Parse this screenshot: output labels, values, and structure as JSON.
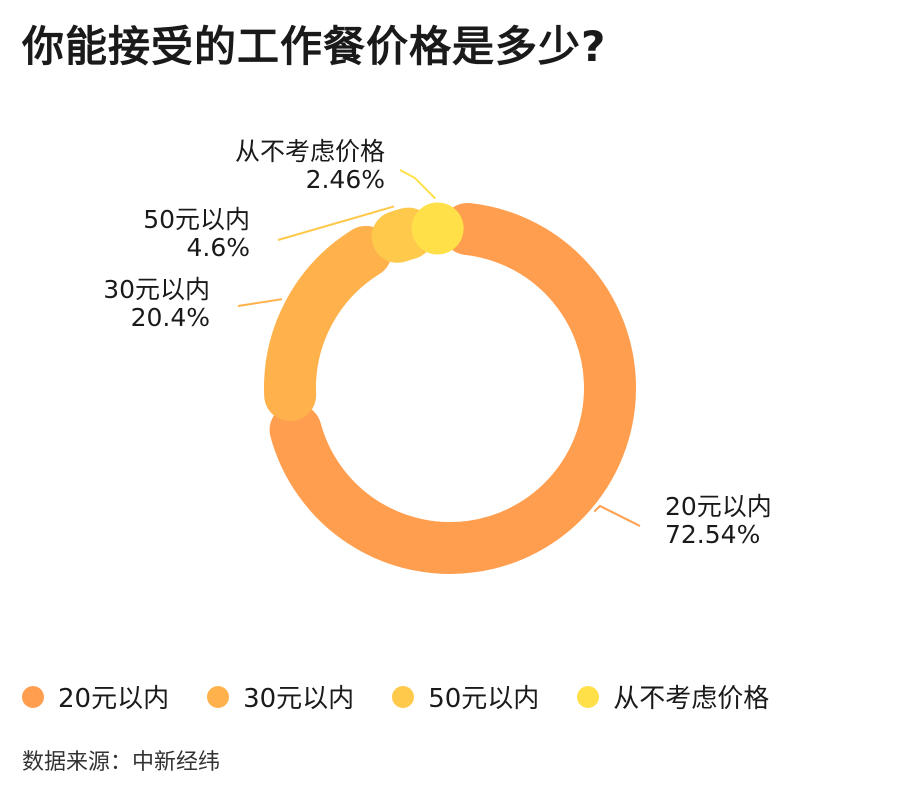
{
  "title": "你能接受的工作餐价格是多少?",
  "source": "数据来源：中新经纬",
  "chart_data": {
    "type": "pie",
    "title": "你能接受的工作餐价格是多少?",
    "categories": [
      "20元以内",
      "30元以内",
      "50元以内",
      "从不考虑价格"
    ],
    "values": [
      72.54,
      20.4,
      4.6,
      2.46
    ],
    "value_labels": [
      "72.54%",
      "20.4%",
      "4.6%",
      "2.46%"
    ],
    "colors": [
      "#FF9E4E",
      "#FFB14C",
      "#FFC94C",
      "#FFE048"
    ],
    "legend_position": "bottom"
  }
}
